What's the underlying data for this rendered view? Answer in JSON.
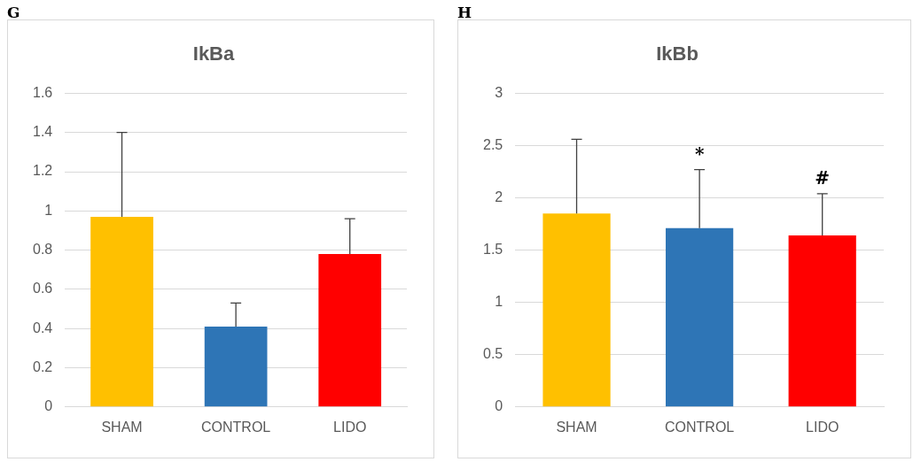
{
  "chart_data": [
    {
      "type": "bar",
      "title": "IkBa",
      "categories": [
        "SHAM",
        "CONTROL",
        "LIDO"
      ],
      "values": [
        0.97,
        0.41,
        0.78
      ],
      "colors": [
        "#ffc000",
        "#2e75b6",
        "#ff0000"
      ],
      "errors": [
        [
          0.97,
          1.4
        ],
        [
          0.41,
          0.53
        ],
        [
          0.78,
          0.96
        ]
      ],
      "ylim": [
        0,
        1.6
      ],
      "yticks": [
        0,
        0.2,
        0.4,
        0.6,
        0.8,
        1,
        1.2,
        1.4,
        1.6
      ],
      "grid": "y",
      "legend": false,
      "annotations": [
        "G"
      ]
    },
    {
      "type": "bar",
      "title": "IkBb",
      "categories": [
        "SHAM",
        "CONTROL",
        "LIDO"
      ],
      "values": [
        1.85,
        1.71,
        1.64
      ],
      "colors": [
        "#ffc000",
        "#2e75b6",
        "#ff0000"
      ],
      "errors": [
        [
          1.85,
          2.56
        ],
        [
          1.71,
          2.27
        ],
        [
          1.64,
          2.04
        ]
      ],
      "ylim": [
        0,
        3
      ],
      "yticks": [
        0,
        0.5,
        1,
        1.5,
        2,
        2.5,
        3
      ],
      "grid": "y",
      "legend": false,
      "annotations": [
        "H",
        {
          "text": "*",
          "x": "CONTROL",
          "y": 2.27
        },
        {
          "text": "#",
          "x": "LIDO",
          "y": 2.04
        }
      ]
    }
  ]
}
